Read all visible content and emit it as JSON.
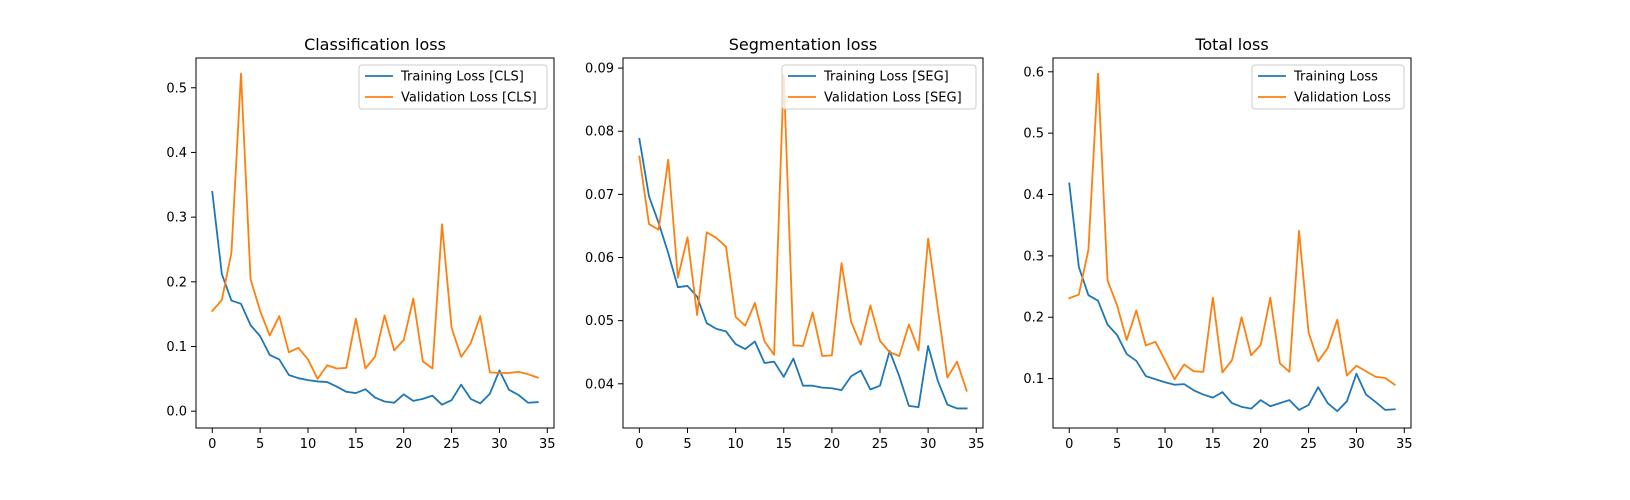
{
  "chart_data": [
    {
      "type": "line",
      "title": "Classification loss",
      "xlabel": "",
      "ylabel": "",
      "xlim": [
        -1.7,
        35.7
      ],
      "ylim": [
        -0.026,
        0.546
      ],
      "xticks": [
        0,
        5,
        10,
        15,
        20,
        25,
        30,
        35
      ],
      "yticks": [
        0.0,
        0.1,
        0.2,
        0.3,
        0.4,
        0.5
      ],
      "xtick_labels": [
        "0",
        "5",
        "10",
        "15",
        "20",
        "25",
        "30",
        "35"
      ],
      "ytick_labels": [
        "0.0",
        "0.1",
        "0.2",
        "0.3",
        "0.4",
        "0.5"
      ],
      "grid": false,
      "legend_position": "top-right",
      "x": [
        0,
        1,
        2,
        3,
        4,
        5,
        6,
        7,
        8,
        9,
        10,
        11,
        12,
        13,
        14,
        15,
        16,
        17,
        18,
        19,
        20,
        21,
        22,
        23,
        24,
        25,
        26,
        27,
        28,
        29,
        30,
        31,
        32,
        33,
        34
      ],
      "series": [
        {
          "name": "Training Loss [CLS]",
          "color": "#1f77b4",
          "values": [
            0.339,
            0.212,
            0.171,
            0.166,
            0.133,
            0.116,
            0.087,
            0.08,
            0.056,
            0.051,
            0.048,
            0.046,
            0.045,
            0.038,
            0.03,
            0.028,
            0.034,
            0.021,
            0.015,
            0.013,
            0.026,
            0.016,
            0.019,
            0.024,
            0.01,
            0.017,
            0.041,
            0.019,
            0.012,
            0.027,
            0.063,
            0.033,
            0.025,
            0.013,
            0.014
          ]
        },
        {
          "name": "Validation Loss [CLS]",
          "color": "#ff7f0e",
          "values": [
            0.155,
            0.172,
            0.245,
            0.522,
            0.204,
            0.155,
            0.117,
            0.147,
            0.091,
            0.098,
            0.08,
            0.05,
            0.071,
            0.066,
            0.067,
            0.143,
            0.066,
            0.084,
            0.148,
            0.094,
            0.11,
            0.174,
            0.077,
            0.066,
            0.289,
            0.129,
            0.084,
            0.105,
            0.147,
            0.06,
            0.059,
            0.059,
            0.061,
            0.057,
            0.052
          ]
        }
      ]
    },
    {
      "type": "line",
      "title": "Segmentation loss",
      "xlabel": "",
      "ylabel": "",
      "xlim": [
        -1.7,
        35.7
      ],
      "ylim": [
        0.033,
        0.0916
      ],
      "xticks": [
        0,
        5,
        10,
        15,
        20,
        25,
        30,
        35
      ],
      "yticks": [
        0.04,
        0.05,
        0.06,
        0.07,
        0.08,
        0.09
      ],
      "xtick_labels": [
        "0",
        "5",
        "10",
        "15",
        "20",
        "25",
        "30",
        "35"
      ],
      "ytick_labels": [
        "0.04",
        "0.05",
        "0.06",
        "0.07",
        "0.08",
        "0.09"
      ],
      "grid": false,
      "legend_position": "top-right",
      "x": [
        0,
        1,
        2,
        3,
        4,
        5,
        6,
        7,
        8,
        9,
        10,
        11,
        12,
        13,
        14,
        15,
        16,
        17,
        18,
        19,
        20,
        21,
        22,
        23,
        24,
        25,
        26,
        27,
        28,
        29,
        30,
        31,
        32,
        33,
        34
      ],
      "series": [
        {
          "name": "Training Loss [SEG]",
          "color": "#1f77b4",
          "values": [
            0.0788,
            0.0697,
            0.0655,
            0.0607,
            0.0553,
            0.0555,
            0.0538,
            0.0496,
            0.0487,
            0.0483,
            0.0463,
            0.0455,
            0.0467,
            0.0433,
            0.0435,
            0.0411,
            0.044,
            0.0397,
            0.0397,
            0.0394,
            0.0393,
            0.039,
            0.0412,
            0.0421,
            0.0391,
            0.0397,
            0.0452,
            0.0412,
            0.0365,
            0.0363,
            0.046,
            0.0405,
            0.0367,
            0.0361,
            0.0361
          ]
        },
        {
          "name": "Validation Loss [SEG]",
          "color": "#ff7f0e",
          "values": [
            0.076,
            0.0653,
            0.0644,
            0.0755,
            0.0568,
            0.0632,
            0.0509,
            0.064,
            0.0631,
            0.0617,
            0.0506,
            0.0492,
            0.0528,
            0.0467,
            0.0446,
            0.089,
            0.0461,
            0.046,
            0.0513,
            0.0444,
            0.0445,
            0.0591,
            0.0498,
            0.0462,
            0.0524,
            0.0468,
            0.045,
            0.0444,
            0.0494,
            0.0453,
            0.063,
            0.052,
            0.041,
            0.0435,
            0.0389
          ]
        }
      ]
    },
    {
      "type": "line",
      "title": "Total loss",
      "xlabel": "",
      "ylabel": "",
      "xlim": [
        -1.7,
        35.7
      ],
      "ylim": [
        0.0195,
        0.6225
      ],
      "xticks": [
        0,
        5,
        10,
        15,
        20,
        25,
        30,
        35
      ],
      "yticks": [
        0.1,
        0.2,
        0.3,
        0.4,
        0.5,
        0.6
      ],
      "xtick_labels": [
        "0",
        "5",
        "10",
        "15",
        "20",
        "25",
        "30",
        "35"
      ],
      "ytick_labels": [
        "0.1",
        "0.2",
        "0.3",
        "0.4",
        "0.5",
        "0.6"
      ],
      "grid": false,
      "legend_position": "top-right",
      "x": [
        0,
        1,
        2,
        3,
        4,
        5,
        6,
        7,
        8,
        9,
        10,
        11,
        12,
        13,
        14,
        15,
        16,
        17,
        18,
        19,
        20,
        21,
        22,
        23,
        24,
        25,
        26,
        27,
        28,
        29,
        30,
        31,
        32,
        33,
        34
      ],
      "series": [
        {
          "name": "Training Loss",
          "color": "#1f77b4",
          "values": [
            0.418,
            0.282,
            0.236,
            0.227,
            0.188,
            0.171,
            0.14,
            0.129,
            0.104,
            0.099,
            0.094,
            0.09,
            0.091,
            0.081,
            0.074,
            0.069,
            0.078,
            0.06,
            0.054,
            0.051,
            0.065,
            0.055,
            0.06,
            0.065,
            0.049,
            0.057,
            0.086,
            0.06,
            0.047,
            0.063,
            0.108,
            0.074,
            0.062,
            0.049,
            0.05
          ]
        },
        {
          "name": "Validation Loss",
          "color": "#ff7f0e",
          "values": [
            0.231,
            0.237,
            0.31,
            0.597,
            0.26,
            0.219,
            0.163,
            0.211,
            0.154,
            0.16,
            0.13,
            0.099,
            0.123,
            0.112,
            0.111,
            0.232,
            0.11,
            0.13,
            0.2,
            0.138,
            0.155,
            0.232,
            0.125,
            0.111,
            0.341,
            0.175,
            0.128,
            0.15,
            0.196,
            0.105,
            0.121,
            0.112,
            0.103,
            0.101,
            0.09
          ]
        }
      ]
    }
  ]
}
